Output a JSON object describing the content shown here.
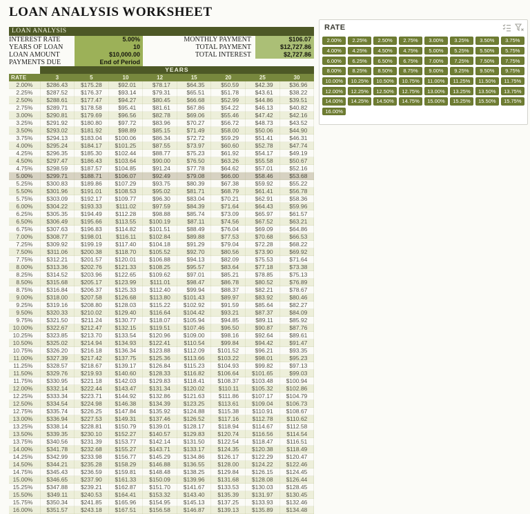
{
  "page": {
    "title": "LOAN ANALYSIS WORKSHEET"
  },
  "colors": {
    "header_dark": "#4d5826",
    "header_mid": "#77873d",
    "input_cell_green": "#9cb158",
    "output_cell_green": "#abbf76",
    "row_tint": "#edefda",
    "row_highlight": "#d7d2c2",
    "slicer_button_green": "#6f7d33",
    "table_text": "#56554a"
  },
  "analysis": {
    "header": "LOAN ANALYSIS",
    "left_fields": [
      {
        "label": "INTEREST RATE",
        "value": "5.00%"
      },
      {
        "label": "YEARS OF LOAN",
        "value": "10"
      },
      {
        "label": "LOAN AMOUNT",
        "value": "$10,000.00"
      },
      {
        "label": "PAYMENTS DUE",
        "value": "End of Period"
      }
    ],
    "right_fields": [
      {
        "label": "MONTHLY PAYMENT",
        "value": "$106.07"
      },
      {
        "label": "TOTAL PAYMENT",
        "value": "$12,727.86"
      },
      {
        "label": "TOTAL INTEREST",
        "value": "$2,727.86"
      }
    ]
  },
  "table": {
    "years_label": "YEARS",
    "rate_label": "RATE",
    "columns": [
      "3",
      "5",
      "10",
      "12",
      "15",
      "20",
      "25",
      "30"
    ],
    "selected_rate": "5.00%",
    "rows": [
      {
        "rate": "2.00%",
        "values": [
          "$286.43",
          "$175.28",
          "$92.01",
          "$78.17",
          "$64.35",
          "$50.59",
          "$42.39",
          "$36.96"
        ]
      },
      {
        "rate": "2.25%",
        "values": [
          "$287.52",
          "$176.37",
          "$93.14",
          "$79.31",
          "$65.51",
          "$51.78",
          "$43.61",
          "$38.22"
        ]
      },
      {
        "rate": "2.50%",
        "values": [
          "$288.61",
          "$177.47",
          "$94.27",
          "$80.45",
          "$66.68",
          "$52.99",
          "$44.86",
          "$39.51"
        ]
      },
      {
        "rate": "2.75%",
        "values": [
          "$289.71",
          "$178.58",
          "$95.41",
          "$81.61",
          "$67.86",
          "$54.22",
          "$46.13",
          "$40.82"
        ]
      },
      {
        "rate": "3.00%",
        "values": [
          "$290.81",
          "$179.69",
          "$96.56",
          "$82.78",
          "$69.06",
          "$55.46",
          "$47.42",
          "$42.16"
        ]
      },
      {
        "rate": "3.25%",
        "values": [
          "$291.92",
          "$180.80",
          "$97.72",
          "$83.96",
          "$70.27",
          "$56.72",
          "$48.73",
          "$43.52"
        ]
      },
      {
        "rate": "3.50%",
        "values": [
          "$293.02",
          "$181.92",
          "$98.89",
          "$85.15",
          "$71.49",
          "$58.00",
          "$50.06",
          "$44.90"
        ]
      },
      {
        "rate": "3.75%",
        "values": [
          "$294.13",
          "$183.04",
          "$100.06",
          "$86.34",
          "$72.72",
          "$59.29",
          "$51.41",
          "$46.31"
        ]
      },
      {
        "rate": "4.00%",
        "values": [
          "$295.24",
          "$184.17",
          "$101.25",
          "$87.55",
          "$73.97",
          "$60.60",
          "$52.78",
          "$47.74"
        ]
      },
      {
        "rate": "4.25%",
        "values": [
          "$296.35",
          "$185.30",
          "$102.44",
          "$88.77",
          "$75.23",
          "$61.92",
          "$54.17",
          "$49.19"
        ]
      },
      {
        "rate": "4.50%",
        "values": [
          "$297.47",
          "$186.43",
          "$103.64",
          "$90.00",
          "$76.50",
          "$63.26",
          "$55.58",
          "$50.67"
        ]
      },
      {
        "rate": "4.75%",
        "values": [
          "$298.59",
          "$187.57",
          "$104.85",
          "$91.24",
          "$77.78",
          "$64.62",
          "$57.01",
          "$52.16"
        ]
      },
      {
        "rate": "5.00%",
        "values": [
          "$299.71",
          "$188.71",
          "$106.07",
          "$92.49",
          "$79.08",
          "$66.00",
          "$58.46",
          "$53.68"
        ]
      },
      {
        "rate": "5.25%",
        "values": [
          "$300.83",
          "$189.86",
          "$107.29",
          "$93.75",
          "$80.39",
          "$67.38",
          "$59.92",
          "$55.22"
        ]
      },
      {
        "rate": "5.50%",
        "values": [
          "$301.96",
          "$191.01",
          "$108.53",
          "$95.02",
          "$81.71",
          "$68.79",
          "$61.41",
          "$56.78"
        ]
      },
      {
        "rate": "5.75%",
        "values": [
          "$303.09",
          "$192.17",
          "$109.77",
          "$96.30",
          "$83.04",
          "$70.21",
          "$62.91",
          "$58.36"
        ]
      },
      {
        "rate": "6.00%",
        "values": [
          "$304.22",
          "$193.33",
          "$111.02",
          "$97.59",
          "$84.39",
          "$71.64",
          "$64.43",
          "$59.96"
        ]
      },
      {
        "rate": "6.25%",
        "values": [
          "$305.35",
          "$194.49",
          "$112.28",
          "$98.88",
          "$85.74",
          "$73.09",
          "$65.97",
          "$61.57"
        ]
      },
      {
        "rate": "6.50%",
        "values": [
          "$306.49",
          "$195.66",
          "$113.55",
          "$100.19",
          "$87.11",
          "$74.56",
          "$67.52",
          "$63.21"
        ]
      },
      {
        "rate": "6.75%",
        "values": [
          "$307.63",
          "$196.83",
          "$114.82",
          "$101.51",
          "$88.49",
          "$76.04",
          "$69.09",
          "$64.86"
        ]
      },
      {
        "rate": "7.00%",
        "values": [
          "$308.77",
          "$198.01",
          "$116.11",
          "$102.84",
          "$89.88",
          "$77.53",
          "$70.68",
          "$66.53"
        ]
      },
      {
        "rate": "7.25%",
        "values": [
          "$309.92",
          "$199.19",
          "$117.40",
          "$104.18",
          "$91.29",
          "$79.04",
          "$72.28",
          "$68.22"
        ]
      },
      {
        "rate": "7.50%",
        "values": [
          "$311.06",
          "$200.38",
          "$118.70",
          "$105.52",
          "$92.70",
          "$80.56",
          "$73.90",
          "$69.92"
        ]
      },
      {
        "rate": "7.75%",
        "values": [
          "$312.21",
          "$201.57",
          "$120.01",
          "$106.88",
          "$94.13",
          "$82.09",
          "$75.53",
          "$71.64"
        ]
      },
      {
        "rate": "8.00%",
        "values": [
          "$313.36",
          "$202.76",
          "$121.33",
          "$108.25",
          "$95.57",
          "$83.64",
          "$77.18",
          "$73.38"
        ]
      },
      {
        "rate": "8.25%",
        "values": [
          "$314.52",
          "$203.96",
          "$122.65",
          "$109.62",
          "$97.01",
          "$85.21",
          "$78.85",
          "$75.13"
        ]
      },
      {
        "rate": "8.50%",
        "values": [
          "$315.68",
          "$205.17",
          "$123.99",
          "$111.01",
          "$98.47",
          "$86.78",
          "$80.52",
          "$76.89"
        ]
      },
      {
        "rate": "8.75%",
        "values": [
          "$316.84",
          "$206.37",
          "$125.33",
          "$112.40",
          "$99.94",
          "$88.37",
          "$82.21",
          "$78.67"
        ]
      },
      {
        "rate": "9.00%",
        "values": [
          "$318.00",
          "$207.58",
          "$126.68",
          "$113.80",
          "$101.43",
          "$89.97",
          "$83.92",
          "$80.46"
        ]
      },
      {
        "rate": "9.25%",
        "values": [
          "$319.16",
          "$208.80",
          "$128.03",
          "$115.22",
          "$102.92",
          "$91.59",
          "$85.64",
          "$82.27"
        ]
      },
      {
        "rate": "9.50%",
        "values": [
          "$320.33",
          "$210.02",
          "$129.40",
          "$116.64",
          "$104.42",
          "$93.21",
          "$87.37",
          "$84.09"
        ]
      },
      {
        "rate": "9.75%",
        "values": [
          "$321.50",
          "$211.24",
          "$130.77",
          "$118.07",
          "$105.94",
          "$94.85",
          "$89.11",
          "$85.92"
        ]
      },
      {
        "rate": "10.00%",
        "values": [
          "$322.67",
          "$212.47",
          "$132.15",
          "$119.51",
          "$107.46",
          "$96.50",
          "$90.87",
          "$87.76"
        ]
      },
      {
        "rate": "10.25%",
        "values": [
          "$323.85",
          "$213.70",
          "$133.54",
          "$120.96",
          "$109.00",
          "$98.16",
          "$92.64",
          "$89.61"
        ]
      },
      {
        "rate": "10.50%",
        "values": [
          "$325.02",
          "$214.94",
          "$134.93",
          "$122.41",
          "$110.54",
          "$99.84",
          "$94.42",
          "$91.47"
        ]
      },
      {
        "rate": "10.75%",
        "values": [
          "$326.20",
          "$216.18",
          "$136.34",
          "$123.88",
          "$112.09",
          "$101.52",
          "$96.21",
          "$93.35"
        ]
      },
      {
        "rate": "11.00%",
        "values": [
          "$327.39",
          "$217.42",
          "$137.75",
          "$125.36",
          "$113.66",
          "$103.22",
          "$98.01",
          "$95.23"
        ]
      },
      {
        "rate": "11.25%",
        "values": [
          "$328.57",
          "$218.67",
          "$139.17",
          "$126.84",
          "$115.23",
          "$104.93",
          "$99.82",
          "$97.13"
        ]
      },
      {
        "rate": "11.50%",
        "values": [
          "$329.76",
          "$219.93",
          "$140.60",
          "$128.33",
          "$116.82",
          "$106.64",
          "$101.65",
          "$99.03"
        ]
      },
      {
        "rate": "11.75%",
        "values": [
          "$330.95",
          "$221.18",
          "$142.03",
          "$129.83",
          "$118.41",
          "$108.37",
          "$103.48",
          "$100.94"
        ]
      },
      {
        "rate": "12.00%",
        "values": [
          "$332.14",
          "$222.44",
          "$143.47",
          "$131.34",
          "$120.02",
          "$110.11",
          "$105.32",
          "$102.86"
        ]
      },
      {
        "rate": "12.25%",
        "values": [
          "$333.34",
          "$223.71",
          "$144.92",
          "$132.86",
          "$121.63",
          "$111.86",
          "$107.17",
          "$104.79"
        ]
      },
      {
        "rate": "12.50%",
        "values": [
          "$334.54",
          "$224.98",
          "$146.38",
          "$134.39",
          "$123.25",
          "$113.61",
          "$109.04",
          "$106.73"
        ]
      },
      {
        "rate": "12.75%",
        "values": [
          "$335.74",
          "$226.25",
          "$147.84",
          "$135.92",
          "$124.88",
          "$115.38",
          "$110.91",
          "$108.67"
        ]
      },
      {
        "rate": "13.00%",
        "values": [
          "$336.94",
          "$227.53",
          "$149.31",
          "$137.46",
          "$126.52",
          "$117.16",
          "$112.78",
          "$110.62"
        ]
      },
      {
        "rate": "13.25%",
        "values": [
          "$338.14",
          "$228.81",
          "$150.79",
          "$139.01",
          "$128.17",
          "$118.94",
          "$114.67",
          "$112.58"
        ]
      },
      {
        "rate": "13.50%",
        "values": [
          "$339.35",
          "$230.10",
          "$152.27",
          "$140.57",
          "$129.83",
          "$120.74",
          "$116.56",
          "$114.54"
        ]
      },
      {
        "rate": "13.75%",
        "values": [
          "$340.56",
          "$231.39",
          "$153.77",
          "$142.14",
          "$131.50",
          "$122.54",
          "$118.47",
          "$116.51"
        ]
      },
      {
        "rate": "14.00%",
        "values": [
          "$341.78",
          "$232.68",
          "$155.27",
          "$143.71",
          "$133.17",
          "$124.35",
          "$120.38",
          "$118.49"
        ]
      },
      {
        "rate": "14.25%",
        "values": [
          "$342.99",
          "$233.98",
          "$156.77",
          "$145.29",
          "$134.86",
          "$126.17",
          "$122.29",
          "$120.47"
        ]
      },
      {
        "rate": "14.50%",
        "values": [
          "$344.21",
          "$235.28",
          "$158.29",
          "$146.88",
          "$136.55",
          "$128.00",
          "$124.22",
          "$122.46"
        ]
      },
      {
        "rate": "14.75%",
        "values": [
          "$345.43",
          "$236.59",
          "$159.81",
          "$148.48",
          "$138.25",
          "$129.84",
          "$126.15",
          "$124.45"
        ]
      },
      {
        "rate": "15.00%",
        "values": [
          "$346.65",
          "$237.90",
          "$161.33",
          "$150.09",
          "$139.96",
          "$131.68",
          "$128.08",
          "$126.44"
        ]
      },
      {
        "rate": "15.25%",
        "values": [
          "$347.88",
          "$239.21",
          "$162.87",
          "$151.70",
          "$141.67",
          "$133.53",
          "$130.03",
          "$128.45"
        ]
      },
      {
        "rate": "15.50%",
        "values": [
          "$349.11",
          "$240.53",
          "$164.41",
          "$153.32",
          "$143.40",
          "$135.39",
          "$131.97",
          "$130.45"
        ]
      },
      {
        "rate": "15.75%",
        "values": [
          "$350.34",
          "$241.85",
          "$165.96",
          "$154.95",
          "$145.13",
          "$137.25",
          "$133.93",
          "$132.46"
        ]
      },
      {
        "rate": "16.00%",
        "values": [
          "$351.57",
          "$243.18",
          "$167.51",
          "$156.58",
          "$146.87",
          "$139.13",
          "$135.89",
          "$134.48"
        ]
      }
    ]
  },
  "slicer": {
    "title": "RATE",
    "icons": [
      "multi-select-icon",
      "clear-filter-icon"
    ],
    "items": [
      "2.00%",
      "2.25%",
      "2.50%",
      "2.75%",
      "3.00%",
      "3.25%",
      "3.50%",
      "3.75%",
      "4.00%",
      "4.25%",
      "4.50%",
      "4.75%",
      "5.00%",
      "5.25%",
      "5.50%",
      "5.75%",
      "6.00%",
      "6.25%",
      "6.50%",
      "6.75%",
      "7.00%",
      "7.25%",
      "7.50%",
      "7.75%",
      "8.00%",
      "8.25%",
      "8.50%",
      "8.75%",
      "9.00%",
      "9.25%",
      "9.50%",
      "9.75%",
      "10.00%",
      "10.25%",
      "10.50%",
      "10.75%",
      "11.00%",
      "11.25%",
      "11.50%",
      "11.75%",
      "12.00%",
      "12.25%",
      "12.50%",
      "12.75%",
      "13.00%",
      "13.25%",
      "13.50%",
      "13.75%",
      "14.00%",
      "14.25%",
      "14.50%",
      "14.75%",
      "15.00%",
      "15.25%",
      "15.50%",
      "15.75%",
      "16.00%"
    ]
  }
}
